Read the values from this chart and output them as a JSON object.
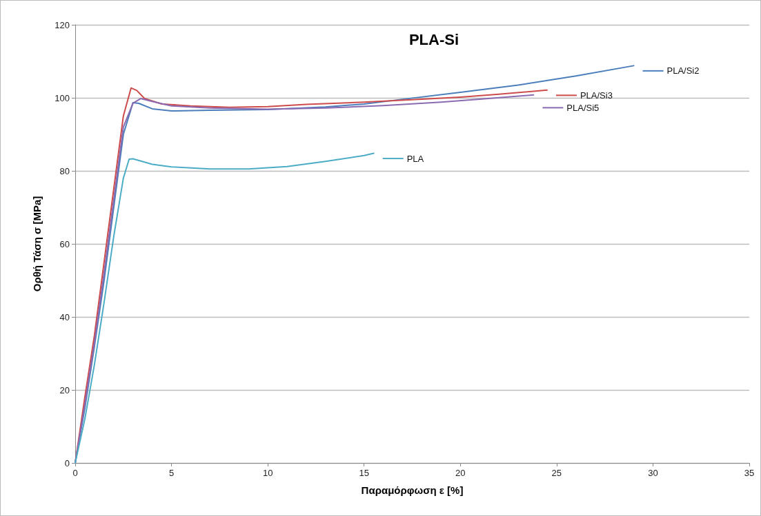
{
  "chart_data": {
    "type": "line",
    "title": "PLA-Si",
    "xlabel": "Παραμόρφωση ε [%]",
    "ylabel": "Ορθή Τάση σ [MPa]",
    "xlim": [
      0,
      35
    ],
    "xticks": [
      0,
      5,
      10,
      15,
      20,
      25,
      30,
      35
    ],
    "ylim": [
      0,
      120
    ],
    "yticks": [
      0,
      20,
      40,
      60,
      80,
      100,
      120
    ],
    "grid": "y",
    "legend": "right",
    "marker": "none",
    "line_style": "solid",
    "series": [
      {
        "name": "PLA/Si2",
        "color": "#4a7ebb",
        "x": [
          0,
          0.5,
          1,
          1.5,
          2,
          2.5,
          3,
          3.3,
          4,
          5,
          7,
          10,
          13,
          15,
          17,
          20,
          23,
          26,
          29
        ],
        "values": [
          0,
          15,
          32,
          50,
          70,
          90,
          98.7,
          98.5,
          97,
          96.4,
          96.6,
          96.8,
          97.5,
          98.3,
          99.6,
          101.5,
          103.5,
          106,
          108.8
        ]
      },
      {
        "name": "PLA/Si3",
        "color": "#cd4b4b",
        "x": [
          0,
          0.5,
          1,
          1.5,
          2,
          2.5,
          2.9,
          3.2,
          3.6,
          4.5,
          6,
          8,
          10,
          12,
          15,
          18,
          20,
          22,
          24.5
        ],
        "values": [
          0,
          18,
          35,
          55,
          75,
          95,
          102.7,
          102,
          99.8,
          98.3,
          97.8,
          97.4,
          97.6,
          98.2,
          98.8,
          99.6,
          100.2,
          101,
          102.1
        ]
      },
      {
        "name": "PLA/Si5",
        "color": "#8a6ab0",
        "x": [
          0,
          0.5,
          1,
          1.5,
          2,
          2.5,
          3,
          3.4,
          4,
          5,
          7,
          10,
          13,
          16,
          19,
          21,
          23.8
        ],
        "values": [
          0,
          16,
          33,
          52,
          72,
          92,
          98.5,
          99.8,
          99,
          97.8,
          97.2,
          96.9,
          97.2,
          97.9,
          98.8,
          99.6,
          100.8
        ]
      },
      {
        "name": "PLA",
        "color": "#4bacc6",
        "x": [
          0,
          0.5,
          1,
          1.5,
          2,
          2.5,
          2.8,
          3,
          4,
          5,
          7,
          9,
          11,
          13,
          15,
          15.5
        ],
        "values": [
          0,
          12,
          27,
          44,
          62,
          78,
          83.2,
          83.3,
          81.8,
          81.1,
          80.5,
          80.5,
          81.2,
          82.6,
          84.2,
          84.8
        ]
      }
    ]
  }
}
